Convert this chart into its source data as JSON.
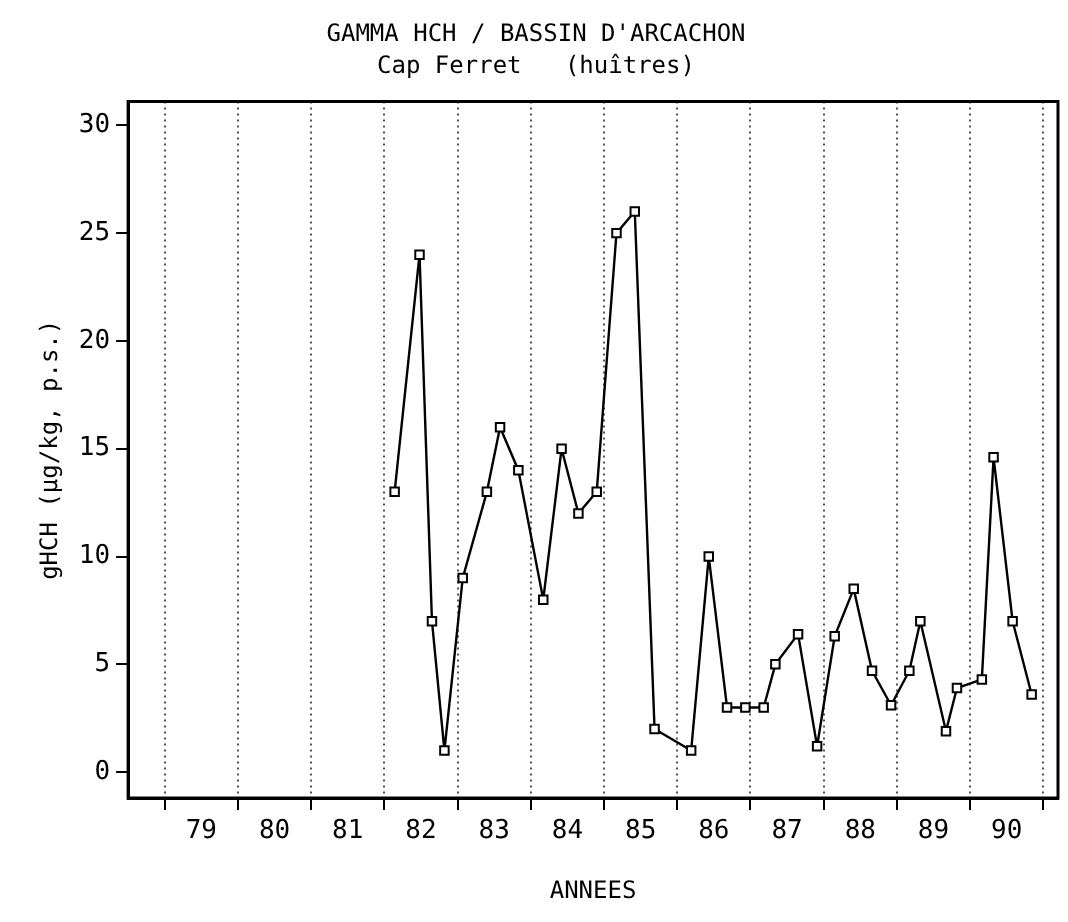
{
  "chart_data": {
    "type": "line",
    "title": "GAMMA HCH / BASSIN D'ARCACHON",
    "subtitle": "Cap Ferret   (huîtres)",
    "xlabel": "ANNEES",
    "ylabel": "gHCH (µg/kg, p.s.)",
    "x": [
      81.64,
      81.98,
      82.15,
      82.32,
      82.57,
      82.9,
      83.08,
      83.33,
      83.67,
      83.92,
      84.15,
      84.4,
      84.67,
      84.92,
      85.19,
      85.69,
      85.93,
      86.18,
      86.43,
      86.68,
      86.84,
      87.15,
      87.41,
      87.65,
      87.91,
      88.16,
      88.42,
      88.67,
      88.82,
      89.17,
      89.32,
      89.66,
      89.82,
      90.08,
      90.34
    ],
    "series": [
      {
        "color": "#000000",
        "values": [
          13,
          24,
          7,
          1,
          9,
          13,
          16,
          14,
          8,
          15,
          12,
          13,
          25,
          26,
          2,
          1,
          10,
          3,
          3,
          3,
          5,
          6.4,
          1.2,
          6.3,
          8.5,
          4.7,
          3.1,
          4.7,
          7,
          1.9,
          3.9,
          4.3,
          14.6,
          7,
          3.6
        ]
      }
    ],
    "xlim": [
      78,
      90.7
    ],
    "xticks": [
      {
        "value": 78.5,
        "label": null
      },
      79,
      {
        "value": 79.5,
        "label": null
      },
      80,
      {
        "value": 80.5,
        "label": null
      },
      81,
      {
        "value": 81.5,
        "label": null
      },
      82,
      {
        "value": 82.5,
        "label": null
      },
      83,
      {
        "value": 83.5,
        "label": null
      },
      84,
      {
        "value": 84.5,
        "label": null
      },
      85,
      {
        "value": 85.5,
        "label": null
      },
      86,
      {
        "value": 86.5,
        "label": null
      },
      87,
      {
        "value": 87.5,
        "label": null
      },
      88,
      {
        "value": 88.5,
        "label": null
      },
      89,
      {
        "value": 89.5,
        "label": null
      },
      90,
      {
        "value": 90.5,
        "label": null
      }
    ],
    "ylim": [
      -1.2,
      31.1
    ],
    "yticks": [
      0,
      5,
      10,
      15,
      20,
      25,
      30
    ],
    "grid": "x",
    "marker": "square",
    "line_style": "solid",
    "legend": false
  }
}
